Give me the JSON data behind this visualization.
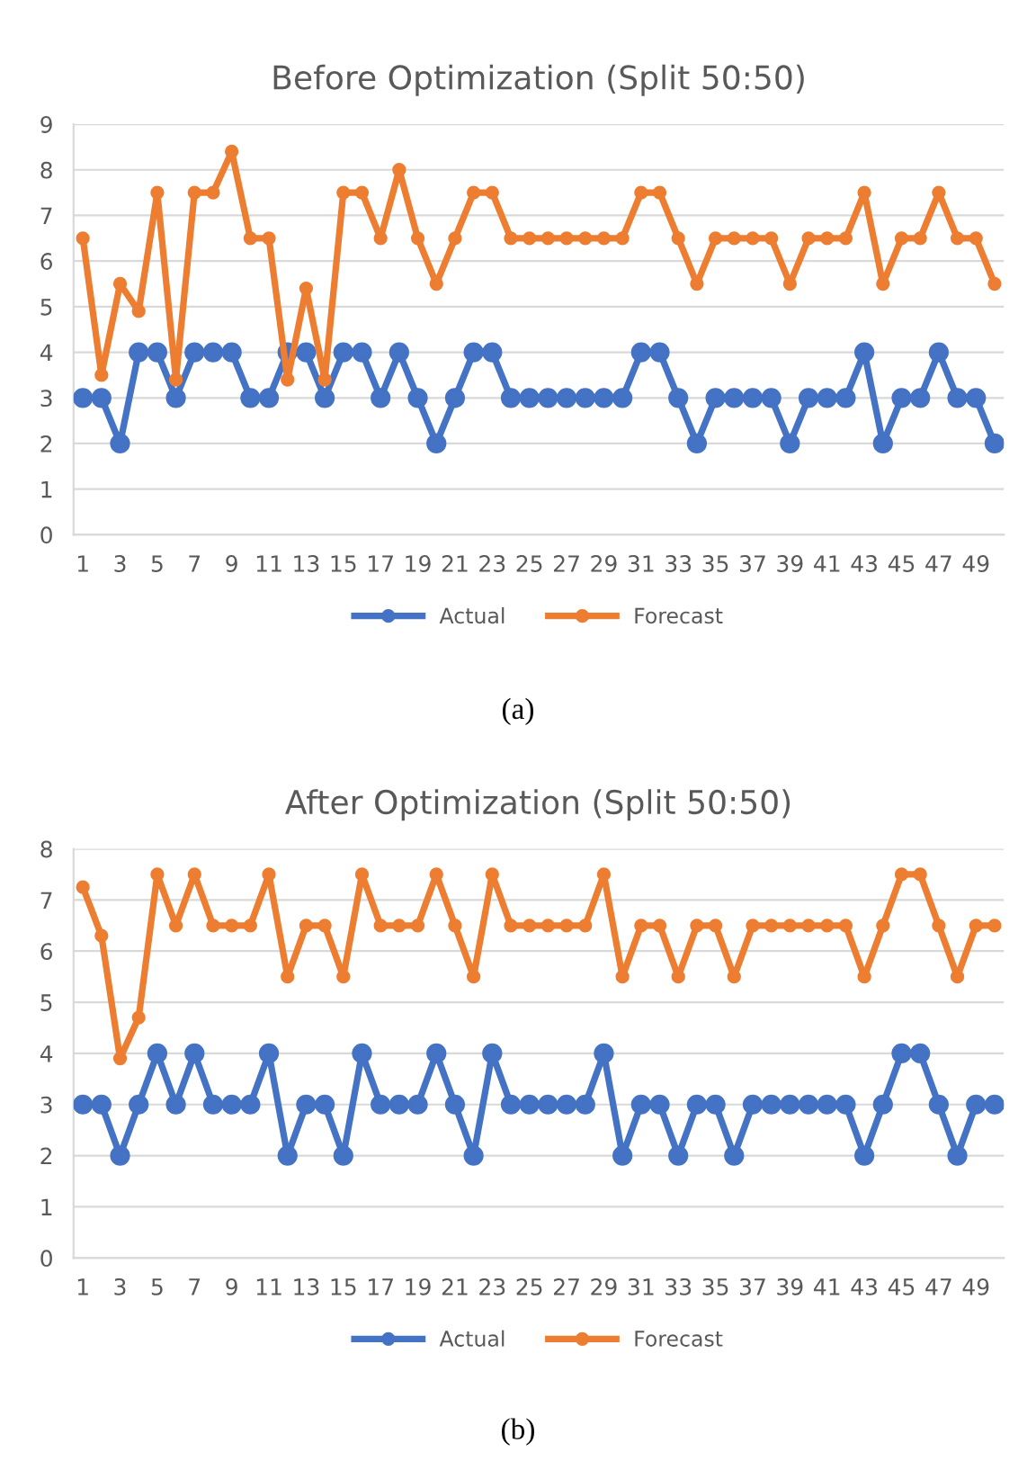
{
  "chart_data": [
    {
      "type": "line",
      "title": "Before Optimization (Split 50:50)",
      "categories": [
        "1",
        null,
        "3",
        null,
        "5",
        null,
        "7",
        null,
        "9",
        null,
        "11",
        null,
        "13",
        null,
        "15",
        null,
        "17",
        null,
        "19",
        null,
        "21",
        null,
        "23",
        null,
        "25",
        null,
        "27",
        null,
        "29",
        null,
        "31",
        null,
        "33",
        null,
        "35",
        null,
        "37",
        null,
        "39",
        null,
        "41",
        null,
        "43",
        null,
        "45",
        null,
        "47",
        null,
        "49",
        null
      ],
      "series": [
        {
          "name": "Actual",
          "color": "#4472c4",
          "values": [
            3,
            3,
            2,
            4,
            4,
            3,
            4,
            4,
            4,
            3,
            3,
            4,
            4,
            3,
            4,
            4,
            3,
            4,
            3,
            2,
            3,
            4,
            4,
            3,
            3,
            3,
            3,
            3,
            3,
            3,
            4,
            4,
            3,
            2,
            3,
            3,
            3,
            3,
            2,
            3,
            3,
            3,
            4,
            2,
            3,
            3,
            4,
            3,
            3,
            2
          ]
        },
        {
          "name": "Forecast",
          "color": "#ed7d31",
          "values": [
            6.5,
            3.5,
            5.5,
            4.9,
            7.5,
            3.4,
            7.5,
            7.5,
            8.4,
            6.5,
            6.5,
            3.4,
            5.4,
            3.4,
            7.5,
            7.5,
            6.5,
            8.0,
            6.5,
            5.5,
            6.5,
            7.5,
            7.5,
            6.5,
            6.5,
            6.5,
            6.5,
            6.5,
            6.5,
            6.5,
            7.5,
            7.5,
            6.5,
            5.5,
            6.5,
            6.5,
            6.5,
            6.5,
            5.5,
            6.5,
            6.5,
            6.5,
            7.5,
            5.5,
            6.5,
            6.5,
            7.5,
            6.5,
            6.5,
            5.5
          ]
        }
      ],
      "ylim": [
        0,
        9
      ],
      "yticks": [
        0,
        1,
        2,
        3,
        4,
        5,
        6,
        7,
        8,
        9
      ],
      "grid": "y",
      "legend": "bottom",
      "marker": "circle",
      "line_style": "solid",
      "annotations": [
        "(a)"
      ]
    },
    {
      "type": "line",
      "title": "After Optimization (Split 50:50)",
      "categories": [
        "1",
        null,
        "3",
        null,
        "5",
        null,
        "7",
        null,
        "9",
        null,
        "11",
        null,
        "13",
        null,
        "15",
        null,
        "17",
        null,
        "19",
        null,
        "21",
        null,
        "23",
        null,
        "25",
        null,
        "27",
        null,
        "29",
        null,
        "31",
        null,
        "33",
        null,
        "35",
        null,
        "37",
        null,
        "39",
        null,
        "41",
        null,
        "43",
        null,
        "45",
        null,
        "47",
        null,
        "49",
        null
      ],
      "series": [
        {
          "name": "Actual",
          "color": "#4472c4",
          "values": [
            3,
            3,
            2,
            3,
            4,
            3,
            4,
            3,
            3,
            3,
            4,
            2,
            3,
            3,
            2,
            4,
            3,
            3,
            3,
            4,
            3,
            2,
            4,
            3,
            3,
            3,
            3,
            3,
            4,
            2,
            3,
            3,
            2,
            3,
            3,
            2,
            3,
            3,
            3,
            3,
            3,
            3,
            2,
            3,
            4,
            4,
            3,
            2,
            3,
            3
          ]
        },
        {
          "name": "Forecast",
          "color": "#ed7d31",
          "values": [
            7.25,
            6.3,
            3.9,
            4.7,
            7.5,
            6.5,
            7.5,
            6.5,
            6.5,
            6.5,
            7.5,
            5.5,
            6.5,
            6.5,
            5.5,
            7.5,
            6.5,
            6.5,
            6.5,
            7.5,
            6.5,
            5.5,
            7.5,
            6.5,
            6.5,
            6.5,
            6.5,
            6.5,
            7.5,
            5.5,
            6.5,
            6.5,
            5.5,
            6.5,
            6.5,
            5.5,
            6.5,
            6.5,
            6.5,
            6.5,
            6.5,
            6.5,
            5.5,
            6.5,
            7.5,
            7.5,
            6.5,
            5.5,
            6.5,
            6.5
          ]
        }
      ],
      "ylim": [
        0,
        8
      ],
      "yticks": [
        0,
        1,
        2,
        3,
        4,
        5,
        6,
        7,
        8
      ],
      "grid": "y",
      "legend": "bottom",
      "marker": "circle",
      "line_style": "solid",
      "annotations": [
        "(b)"
      ]
    }
  ]
}
